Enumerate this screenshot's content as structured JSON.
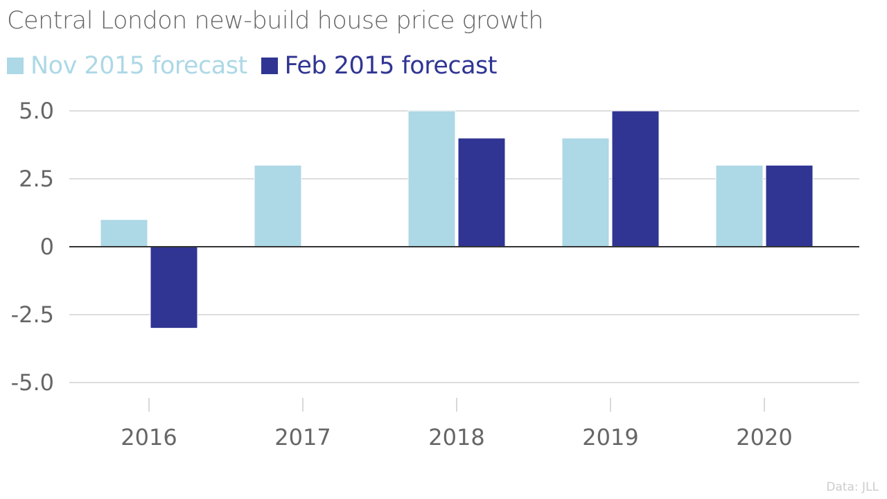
{
  "chart_data": {
    "type": "bar",
    "title": "Central London new-build house price growth",
    "categories": [
      "2016",
      "2017",
      "2018",
      "2019",
      "2020"
    ],
    "series": [
      {
        "name": "Nov 2015 forecast",
        "color": "#add8e6",
        "values": [
          1,
          3,
          5,
          4,
          3
        ]
      },
      {
        "name": "Feb 2015 forecast",
        "color": "#303593",
        "values": [
          -3,
          0,
          4,
          5,
          3
        ]
      }
    ],
    "xlabel": "",
    "ylabel": "",
    "ylim": [
      -5,
      5
    ],
    "yticks": [
      5,
      2.5,
      0,
      -2.5,
      -5
    ],
    "ytick_labels": [
      "5.0",
      "2.5",
      "0",
      "-2.5",
      "-5.0"
    ],
    "grid": true,
    "legend_position": "top-left",
    "source": "Data: JLL"
  }
}
